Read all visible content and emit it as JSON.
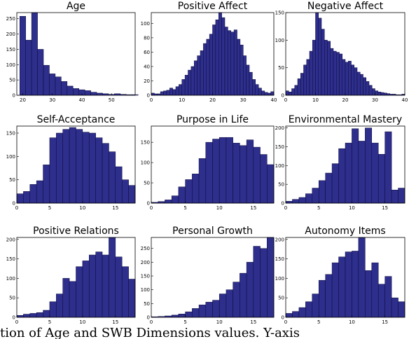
{
  "chart_data": [
    {
      "type": "bar",
      "title": "Age",
      "x": [
        19,
        21,
        23,
        25,
        27,
        29,
        31,
        33,
        35,
        37,
        39,
        41,
        43,
        45,
        47,
        49,
        51,
        53,
        55,
        57
      ],
      "values": [
        258,
        180,
        270,
        150,
        98,
        70,
        60,
        45,
        30,
        22,
        18,
        15,
        10,
        7,
        5,
        3,
        5,
        3,
        2,
        2
      ],
      "xlim": [
        18,
        58
      ],
      "ylim": [
        0,
        270
      ],
      "xticks": [
        20,
        30,
        40,
        50
      ],
      "yticks": [
        0,
        50,
        100,
        150,
        200,
        250
      ]
    },
    {
      "type": "bar",
      "title": "Positive Affect",
      "x": [
        0,
        1,
        2,
        3,
        4,
        5,
        6,
        7,
        8,
        9,
        10,
        11,
        12,
        13,
        14,
        15,
        16,
        17,
        18,
        19,
        20,
        21,
        22,
        23,
        24,
        25,
        26,
        27,
        28,
        29,
        30,
        31,
        32,
        33,
        34,
        35,
        36,
        37,
        38,
        39
      ],
      "values": [
        3,
        2,
        2,
        5,
        6,
        7,
        10,
        8,
        12,
        15,
        22,
        28,
        35,
        40,
        48,
        55,
        62,
        72,
        78,
        85,
        98,
        105,
        115,
        108,
        95,
        90,
        88,
        91,
        78,
        70,
        55,
        42,
        32,
        22,
        15,
        10,
        6,
        4,
        3,
        5
      ],
      "xlim": [
        0,
        40
      ],
      "ylim": [
        0,
        115
      ],
      "xticks": [
        0,
        10,
        20,
        30,
        40
      ],
      "yticks": [
        0,
        20,
        40,
        60,
        80,
        100
      ]
    },
    {
      "type": "bar",
      "title": "Negative Affect",
      "x": [
        0,
        1,
        2,
        3,
        4,
        5,
        6,
        7,
        8,
        9,
        10,
        11,
        12,
        13,
        14,
        15,
        16,
        17,
        18,
        19,
        20,
        21,
        22,
        23,
        24,
        25,
        26,
        27,
        28,
        29,
        30,
        31,
        32,
        33,
        34,
        35,
        36,
        37,
        38,
        39
      ],
      "values": [
        8,
        6,
        12,
        18,
        30,
        40,
        55,
        65,
        80,
        100,
        150,
        140,
        120,
        100,
        98,
        85,
        80,
        78,
        75,
        65,
        60,
        62,
        55,
        50,
        42,
        38,
        32,
        25,
        18,
        12,
        8,
        6,
        5,
        4,
        3,
        2,
        2,
        1,
        1,
        2
      ],
      "xlim": [
        0,
        40
      ],
      "ylim": [
        0,
        150
      ],
      "xticks": [
        0,
        10,
        20,
        30,
        40
      ],
      "yticks": [
        0,
        50,
        100,
        150
      ]
    },
    {
      "type": "bar",
      "title": "Self-Acceptance",
      "x": [
        0,
        1,
        2,
        3,
        4,
        5,
        6,
        7,
        8,
        9,
        10,
        11,
        12,
        13,
        14,
        15,
        16,
        17
      ],
      "values": [
        20,
        25,
        40,
        48,
        82,
        140,
        150,
        158,
        162,
        158,
        152,
        150,
        140,
        128,
        110,
        78,
        50,
        38
      ],
      "xlim": [
        0,
        18
      ],
      "ylim": [
        0,
        165
      ],
      "xticks": [
        0,
        5,
        10,
        15
      ],
      "yticks": [
        0,
        50,
        100,
        150
      ]
    },
    {
      "type": "bar",
      "title": "Purpose in Life",
      "x": [
        0,
        1,
        2,
        3,
        4,
        5,
        6,
        7,
        8,
        9,
        10,
        11,
        12,
        13,
        14,
        15,
        16,
        17
      ],
      "values": [
        2,
        4,
        8,
        18,
        40,
        58,
        72,
        110,
        150,
        158,
        162,
        162,
        148,
        142,
        156,
        138,
        120,
        95
      ],
      "xlim": [
        0,
        18
      ],
      "ylim": [
        0,
        190
      ],
      "xticks": [
        0,
        5,
        10,
        15
      ],
      "yticks": [
        0,
        50,
        100,
        150
      ]
    },
    {
      "type": "bar",
      "title": "Environmental Mastery",
      "x": [
        0,
        1,
        2,
        3,
        4,
        5,
        6,
        7,
        8,
        9,
        10,
        11,
        12,
        13,
        14,
        15,
        16,
        17
      ],
      "values": [
        5,
        10,
        15,
        25,
        40,
        60,
        80,
        105,
        145,
        160,
        198,
        165,
        200,
        160,
        130,
        190,
        35,
        40
      ],
      "xlim": [
        0,
        18
      ],
      "ylim": [
        0,
        205
      ],
      "xticks": [
        0,
        5,
        10,
        15
      ],
      "yticks": [
        0,
        50,
        100,
        150,
        200
      ]
    },
    {
      "type": "bar",
      "title": "Positive Relations",
      "x": [
        0,
        1,
        2,
        3,
        4,
        5,
        6,
        7,
        8,
        9,
        10,
        11,
        12,
        13,
        14,
        15,
        16,
        17
      ],
      "values": [
        5,
        8,
        10,
        12,
        18,
        40,
        60,
        100,
        92,
        130,
        145,
        160,
        168,
        160,
        205,
        155,
        130,
        98
      ],
      "xlim": [
        0,
        18
      ],
      "ylim": [
        0,
        205
      ],
      "xticks": [
        0,
        5,
        10,
        15
      ],
      "yticks": [
        0,
        50,
        100,
        150,
        200
      ]
    },
    {
      "type": "bar",
      "title": "Personal Growth",
      "x": [
        0,
        1,
        2,
        3,
        4,
        5,
        6,
        7,
        8,
        9,
        10,
        11,
        12,
        13,
        14,
        15,
        16,
        17
      ],
      "values": [
        2,
        3,
        5,
        8,
        12,
        20,
        32,
        45,
        55,
        62,
        85,
        100,
        128,
        160,
        200,
        258,
        250,
        290
      ],
      "xlim": [
        0,
        18
      ],
      "ylim": [
        0,
        290
      ],
      "xticks": [
        0,
        5,
        10,
        15
      ],
      "yticks": [
        0,
        50,
        100,
        150,
        200,
        250
      ]
    },
    {
      "type": "bar",
      "title": "Autonomy Items",
      "x": [
        0,
        1,
        2,
        3,
        4,
        5,
        6,
        7,
        8,
        9,
        10,
        11,
        12,
        13,
        14,
        15,
        16,
        17
      ],
      "values": [
        10,
        15,
        25,
        40,
        60,
        95,
        110,
        140,
        155,
        168,
        170,
        205,
        120,
        140,
        85,
        105,
        50,
        40
      ],
      "xlim": [
        0,
        18
      ],
      "ylim": [
        0,
        205
      ],
      "xticks": [
        0,
        5,
        10,
        15
      ],
      "yticks": [
        0,
        50,
        100,
        150,
        200
      ]
    }
  ],
  "caption": "tion of Age and SWB Dimensions values. Y-axis"
}
